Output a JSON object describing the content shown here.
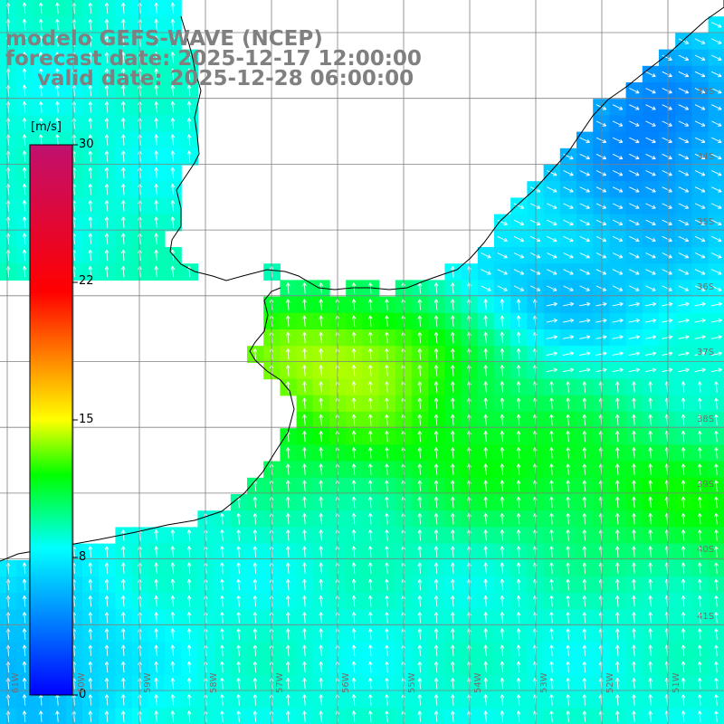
{
  "header": {
    "model_line": "modelo GEFS-WAVE (NCEP)",
    "forecast_line": "forecast date: 2025-12-17 12:00:00",
    "valid_line": "valid date: 2025-12-28 06:00:00"
  },
  "colorbar": {
    "unit": "[m/s]",
    "ticks": [
      "30",
      "22",
      "15",
      "8",
      "0"
    ],
    "tick_values": [
      30,
      22,
      15,
      8,
      0
    ],
    "range": [
      0,
      30
    ],
    "colors": [
      "#0000ff",
      "#00ffff",
      "#00ff00",
      "#ffff00",
      "#ff0000",
      "#c0106f"
    ]
  },
  "map": {
    "variable": "wind speed and direction",
    "lat_labels": [
      "33S",
      "34S",
      "35S",
      "36S",
      "37S",
      "38S",
      "39S",
      "40S",
      "41S"
    ],
    "lon_labels": [
      "61W",
      "60W",
      "59W",
      "58W",
      "57W",
      "56W",
      "55W",
      "54W",
      "53W",
      "52W",
      "51W"
    ],
    "land_color": "#ffffff",
    "grid_color": "#808080",
    "coast_color": "#000000",
    "arrow_color": "#ffffff"
  }
}
